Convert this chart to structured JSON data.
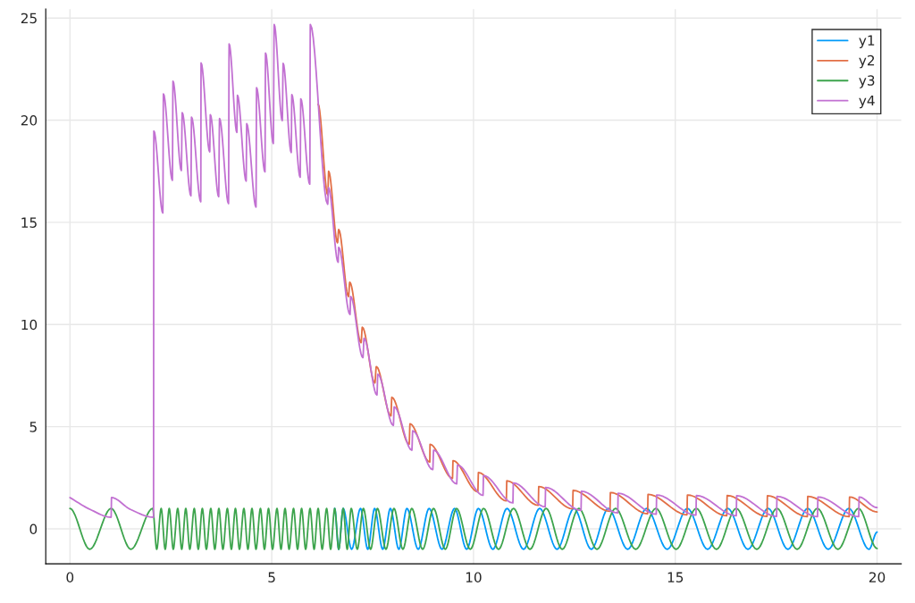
{
  "chart_data": {
    "type": "line",
    "xlim": [
      -0.6,
      20.6
    ],
    "ylim": [
      -1.71,
      25.44
    ],
    "xticks": [
      0,
      5,
      10,
      15,
      20
    ],
    "yticks": [
      0,
      5,
      10,
      15,
      20,
      25
    ],
    "grid": true,
    "legend": "top right",
    "line_style": "solid",
    "series": [
      {
        "name": "y1",
        "color": "#009af9",
        "x": [
          6.56,
          6.66,
          6.77,
          6.98,
          7.2,
          7.38,
          7.55,
          7.75,
          7.94,
          8.15,
          8.35,
          8.63,
          8.9,
          9.22,
          9.53,
          9.83,
          10.12,
          10.48,
          10.83,
          11.24,
          11.64,
          12.07,
          12.49,
          12.92,
          13.34,
          13.82,
          14.29,
          14.8,
          15.3,
          15.8,
          16.3,
          16.8,
          17.3,
          17.79,
          18.28,
          18.79,
          19.3,
          19.8,
          20
        ],
        "values": [
          1,
          -1,
          1,
          -1,
          1,
          -1,
          1,
          -1,
          1,
          -1,
          1,
          -1,
          1,
          -1,
          1,
          -1,
          1,
          -1,
          1,
          -1,
          1,
          -1,
          1,
          -1,
          1,
          -1,
          1,
          -1,
          1,
          -1,
          1,
          -1,
          1,
          -1,
          1,
          -1,
          1,
          -1,
          -0.16
        ]
      },
      {
        "name": "y2",
        "color": "#e26f46",
        "x": [
          6.149,
          6.39,
          6.41,
          6.63,
          6.659,
          6.903,
          6.933,
          7.214,
          7.244,
          7.555,
          7.592,
          7.954,
          7.976,
          8.405,
          8.427,
          8.916,
          8.923,
          9.478,
          9.493,
          10.107,
          10.122,
          10.812,
          10.825,
          11.605,
          11.617,
          12.455,
          12.468,
          13.38,
          13.393,
          14.313,
          14.325,
          15.289,
          15.301,
          16.274,
          16.286,
          17.272,
          17.284,
          18.271,
          18.283,
          19.307,
          19.319,
          20
        ],
        "values": [
          20.78,
          16.33,
          17.5,
          14.0,
          14.65,
          11.37,
          12.07,
          9.11,
          9.87,
          7.14,
          7.94,
          5.53,
          6.44,
          4.14,
          5.14,
          3.27,
          4.14,
          2.47,
          3.34,
          1.81,
          2.76,
          1.37,
          2.35,
          1.15,
          2.07,
          0.98,
          1.88,
          0.86,
          1.78,
          0.74,
          1.69,
          0.69,
          1.66,
          0.64,
          1.63,
          0.61,
          1.62,
          0.6,
          1.59,
          0.6,
          1.56,
          0.83
        ]
      },
      {
        "name": "y3",
        "color": "#3da44d",
        "x": [
          0,
          0.49,
          1.02,
          1.51,
          2.05,
          2.15,
          2.26,
          2.36,
          2.46,
          2.56,
          2.67,
          2.77,
          2.87,
          2.97,
          3.08,
          3.18,
          3.28,
          3.38,
          3.49,
          3.59,
          3.69,
          3.79,
          3.9,
          4.0,
          4.1,
          4.2,
          4.31,
          4.41,
          4.51,
          4.61,
          4.72,
          4.82,
          4.92,
          5.02,
          5.13,
          5.23,
          5.33,
          5.43,
          5.54,
          5.64,
          5.74,
          5.84,
          5.95,
          6.05,
          6.15,
          6.25,
          6.36,
          6.46,
          6.56,
          6.66,
          6.77,
          6.87,
          6.97,
          7.12,
          7.27,
          7.45,
          7.62,
          7.83,
          8.03,
          8.25,
          8.47,
          8.74,
          9.01,
          9.3,
          9.58,
          9.92,
          10.25,
          10.62,
          10.99,
          11.4,
          11.8,
          12.2,
          12.61,
          13.06,
          13.52,
          14.02,
          14.52,
          15.02,
          15.52,
          16.02,
          16.51,
          17.02,
          17.52,
          18.02,
          18.52,
          19.03,
          19.54,
          20
        ],
        "values": [
          1,
          -1,
          1,
          -1,
          1,
          -1,
          1,
          -1,
          1,
          -1,
          1,
          -1,
          1,
          -1,
          1,
          -1,
          1,
          -1,
          1,
          -1,
          1,
          -1,
          1,
          -1,
          1,
          -1,
          1,
          -1,
          1,
          -1,
          1,
          -1,
          1,
          -1,
          1,
          -1,
          1,
          -1,
          1,
          -1,
          1,
          -1,
          1,
          -1,
          1,
          -1,
          1,
          -1,
          1,
          -1,
          1,
          -1,
          1,
          -1,
          1,
          -1,
          1,
          -1,
          1,
          -1,
          1,
          -1,
          1,
          -1,
          1,
          -1,
          1,
          -1,
          1,
          -1,
          1,
          -1,
          1,
          -1,
          1,
          -1,
          1,
          -1,
          1,
          -1,
          1,
          -1,
          1,
          -1,
          1,
          -1,
          1,
          -0.96
        ]
      },
      {
        "name": "y4",
        "color": "#c271d2",
        "x": [
          0,
          0.5,
          1.02,
          1.03,
          1.5,
          2.07,
          2.079,
          2.301,
          2.316,
          2.538,
          2.553,
          2.76,
          2.782,
          2.997,
          3.012,
          3.241,
          3.249,
          3.463,
          3.478,
          3.685,
          3.707,
          3.929,
          3.944,
          4.136,
          4.151,
          4.366,
          4.38,
          4.61,
          4.624,
          4.832,
          4.846,
          5.039,
          5.061,
          5.261,
          5.283,
          5.483,
          5.498,
          5.705,
          5.72,
          5.942,
          5.956,
          6.386,
          6.408,
          6.645,
          6.659,
          6.94,
          6.955,
          7.259,
          7.288,
          7.607,
          7.629,
          8.013,
          8.035,
          8.472,
          8.494,
          8.99,
          9.012,
          9.582,
          9.604,
          10.235,
          10.248,
          10.975,
          10.988,
          11.775,
          11.787,
          12.663,
          12.675,
          13.573,
          13.585,
          14.527,
          14.539,
          15.511,
          15.523,
          16.51,
          16.522,
          17.509,
          17.521,
          18.523,
          18.535,
          19.544,
          19.556,
          20
        ],
        "values": [
          1.53,
          0.95,
          0.57,
          1.53,
          0.95,
          0.57,
          19.47,
          15.46,
          21.29,
          17.06,
          21.91,
          17.54,
          20.37,
          16.3,
          20.15,
          16.01,
          22.8,
          18.45,
          20.27,
          16.26,
          20.08,
          15.92,
          23.73,
          19.4,
          21.22,
          17.02,
          19.83,
          15.75,
          21.59,
          17.47,
          23.29,
          18.86,
          24.68,
          19.98,
          22.78,
          18.42,
          21.25,
          17.21,
          21.05,
          16.87,
          24.69,
          15.89,
          16.7,
          13.05,
          13.78,
          10.49,
          11.37,
          8.38,
          9.33,
          6.55,
          7.57,
          5.06,
          5.97,
          3.85,
          4.8,
          2.9,
          3.85,
          2.2,
          3.12,
          1.64,
          2.61,
          1.27,
          2.25,
          1.08,
          2.03,
          0.9,
          1.84,
          0.78,
          1.74,
          0.72,
          1.66,
          0.67,
          1.63,
          0.64,
          1.62,
          0.61,
          1.59,
          0.6,
          1.56,
          0.6,
          1.56,
          1.04
        ]
      }
    ]
  }
}
